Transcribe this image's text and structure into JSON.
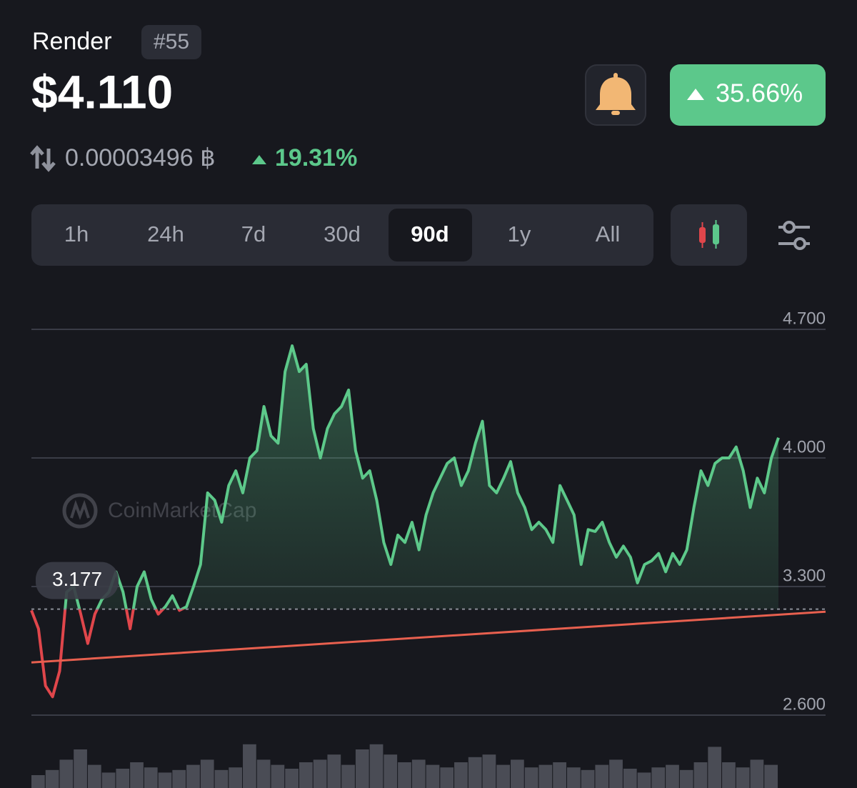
{
  "header": {
    "name": "Render",
    "rank": "#55",
    "price": "$4.110",
    "change": "35.66%",
    "btc_price": "0.00003496 ฿",
    "btc_change": "19.31%"
  },
  "tabs": [
    "1h",
    "24h",
    "7d",
    "30d",
    "90d",
    "1y",
    "All"
  ],
  "active_tab": "90d",
  "watermark": "CoinMarketCap",
  "chart_data": {
    "type": "line",
    "series": [
      {
        "color": "#5dc98a",
        "below_color": "#e0464b",
        "values": [
          3.17,
          3.07,
          2.76,
          2.7,
          2.84,
          3.27,
          3.3,
          3.15,
          2.99,
          3.15,
          3.23,
          3.27,
          3.38,
          3.27,
          3.07,
          3.3,
          3.38,
          3.23,
          3.15,
          3.19,
          3.25,
          3.17,
          3.19,
          3.3,
          3.42,
          3.81,
          3.77,
          3.65,
          3.85,
          3.93,
          3.81,
          4.0,
          4.04,
          4.28,
          4.12,
          4.08,
          4.47,
          4.61,
          4.47,
          4.51,
          4.16,
          4.0,
          4.16,
          4.24,
          4.28,
          4.37,
          4.04,
          3.89,
          3.93,
          3.77,
          3.54,
          3.42,
          3.58,
          3.54,
          3.65,
          3.5,
          3.69,
          3.81,
          3.89,
          3.97,
          4.0,
          3.85,
          3.93,
          4.08,
          4.2,
          3.85,
          3.81,
          3.89,
          3.98,
          3.81,
          3.73,
          3.61,
          3.65,
          3.61,
          3.54,
          3.85,
          3.77,
          3.69,
          3.42,
          3.61,
          3.6,
          3.65,
          3.54,
          3.46,
          3.52,
          3.46,
          3.32,
          3.42,
          3.44,
          3.48,
          3.38,
          3.48,
          3.42,
          3.5,
          3.73,
          3.93,
          3.85,
          3.97,
          4.0,
          4.0,
          4.06,
          3.93,
          3.73,
          3.89,
          3.81,
          4.0,
          4.11
        ]
      }
    ],
    "reference": {
      "value": 3.177,
      "label": "3.177"
    },
    "trend_line": {
      "color": "#e8604f",
      "values": [
        2.887,
        3.163
      ]
    },
    "volume": [
      10,
      14,
      22,
      30,
      18,
      12,
      15,
      20,
      16,
      12,
      14,
      18,
      22,
      14,
      16,
      34,
      22,
      18,
      15,
      20,
      22,
      26,
      18,
      30,
      34,
      26,
      20,
      22,
      18,
      16,
      20,
      24,
      26,
      18,
      22,
      16,
      18,
      20,
      16,
      14,
      18,
      22,
      15,
      12,
      16,
      18,
      14,
      20,
      32,
      20,
      16,
      22,
      18
    ],
    "ylim": [
      2.6,
      4.7
    ],
    "yticks": [
      {
        "value": 2.6,
        "label": "2.600"
      },
      {
        "value": 3.3,
        "label": "3.300"
      },
      {
        "value": 4.0,
        "label": "4.000"
      },
      {
        "value": 4.7,
        "label": "4.700"
      }
    ],
    "grid": true
  }
}
